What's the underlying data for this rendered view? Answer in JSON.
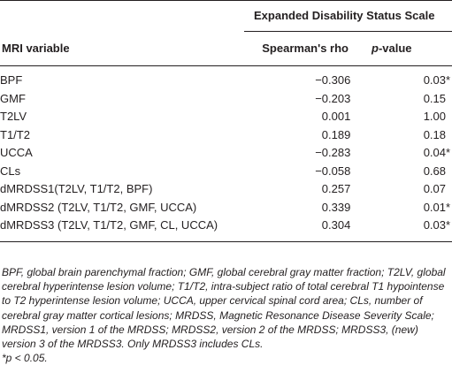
{
  "table": {
    "group_header": "Expanded Disability Status Scale",
    "columns": {
      "variable": "MRI variable",
      "rho": "Spearman's rho",
      "p_prefix": "p",
      "p_suffix": "-value"
    },
    "rows": [
      {
        "variable": "BPF",
        "rho": "−0.306",
        "p": "0.03",
        "sig": "*"
      },
      {
        "variable": "GMF",
        "rho": "−0.203",
        "p": "0.15",
        "sig": ""
      },
      {
        "variable": "T2LV",
        "rho": "0.001",
        "p": "1.00",
        "sig": ""
      },
      {
        "variable": "T1/T2",
        "rho": "0.189",
        "p": "0.18",
        "sig": ""
      },
      {
        "variable": "UCCA",
        "rho": "−0.283",
        "p": "0.04",
        "sig": "*"
      },
      {
        "variable": "CLs",
        "rho": "−0.058",
        "p": "0.68",
        "sig": ""
      },
      {
        "variable": "dMRDSS1(T2LV, T1/T2, BPF)",
        "rho": "0.257",
        "p": "0.07",
        "sig": ""
      },
      {
        "variable": "dMRDSS2 (T2LV, T1/T2, GMF, UCCA)",
        "rho": "0.339",
        "p": "0.01",
        "sig": "*"
      },
      {
        "variable": "dMRDSS3 (T2LV, T1/T2, GMF, CL, UCCA)",
        "rho": "0.304",
        "p": "0.03",
        "sig": "*"
      }
    ]
  },
  "footnote": {
    "abbreviations": "BPF, global brain parenchymal fraction; GMF, global cerebral gray matter fraction; T2LV, global cerebral hyperintense lesion volume; T1/T2, intra-subject ratio of total cerebral T1 hypointense to T2 hyperintense lesion volume; UCCA, upper cervical spinal cord area; CLs, number of cerebral gray matter cortical lesions; MRDSS, Magnetic Resonance Disease Severity Scale; MRDSS1, version 1 of the MRDSS; MRDSS2, version 2 of the MRDSS; MRDSS3, (new) version 3 of the MRDSS3. Only MRDSS3 includes CLs.",
    "significance": "*p < 0.05."
  }
}
